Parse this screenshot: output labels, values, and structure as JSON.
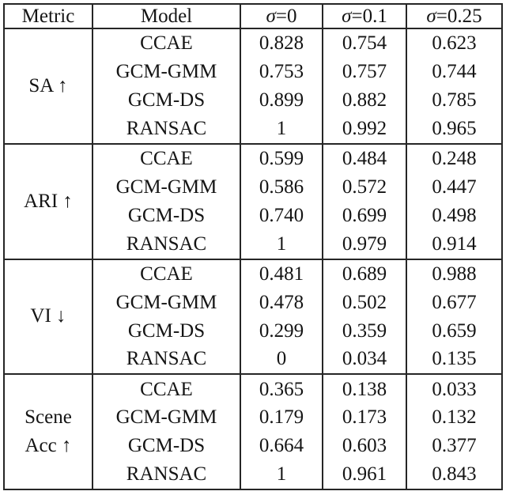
{
  "table": {
    "header": {
      "metric_label": "Metric",
      "model_label": "Model",
      "sigma_symbol": "σ",
      "noise_columns": [
        {
          "label": "σ=0",
          "suffix": "=0"
        },
        {
          "label": "σ=0.1",
          "suffix": "=0.1"
        },
        {
          "label": "σ=0.25",
          "suffix": "=0.25"
        }
      ]
    },
    "sections": [
      {
        "metric": "SA ↑",
        "metric_lines": [
          "SA ↑"
        ],
        "rows": [
          {
            "model": "CCAE",
            "values": [
              "0.828",
              "0.754",
              "0.623"
            ]
          },
          {
            "model": "GCM-GMM",
            "values": [
              "0.753",
              "0.757",
              "0.744"
            ]
          },
          {
            "model": "GCM-DS",
            "values": [
              "0.899",
              "0.882",
              "0.785"
            ]
          },
          {
            "model": "RANSAC",
            "values": [
              "1",
              "0.992",
              "0.965"
            ]
          }
        ]
      },
      {
        "metric": "ARI ↑",
        "metric_lines": [
          "ARI ↑"
        ],
        "rows": [
          {
            "model": "CCAE",
            "values": [
              "0.599",
              "0.484",
              "0.248"
            ]
          },
          {
            "model": "GCM-GMM",
            "values": [
              "0.586",
              "0.572",
              "0.447"
            ]
          },
          {
            "model": "GCM-DS",
            "values": [
              "0.740",
              "0.699",
              "0.498"
            ]
          },
          {
            "model": "RANSAC",
            "values": [
              "1",
              "0.979",
              "0.914"
            ]
          }
        ]
      },
      {
        "metric": "VI ↓",
        "metric_lines": [
          "VI ↓"
        ],
        "rows": [
          {
            "model": "CCAE",
            "values": [
              "0.481",
              "0.689",
              "0.988"
            ]
          },
          {
            "model": "GCM-GMM",
            "values": [
              "0.478",
              "0.502",
              "0.677"
            ]
          },
          {
            "model": "GCM-DS",
            "values": [
              "0.299",
              "0.359",
              "0.659"
            ]
          },
          {
            "model": "RANSAC",
            "values": [
              "0",
              "0.034",
              "0.135"
            ]
          }
        ]
      },
      {
        "metric": "Scene Acc ↑",
        "metric_lines": [
          "Scene",
          "Acc ↑"
        ],
        "rows": [
          {
            "model": "CCAE",
            "values": [
              "0.365",
              "0.138",
              "0.033"
            ]
          },
          {
            "model": "GCM-GMM",
            "values": [
              "0.179",
              "0.173",
              "0.132"
            ]
          },
          {
            "model": "GCM-DS",
            "values": [
              "0.664",
              "0.603",
              "0.377"
            ]
          },
          {
            "model": "RANSAC",
            "values": [
              "1",
              "0.961",
              "0.843"
            ]
          }
        ]
      }
    ]
  },
  "chart_data": {
    "type": "table",
    "columns": [
      "Metric",
      "Model",
      "σ=0",
      "σ=0.1",
      "σ=0.25"
    ],
    "rows": [
      [
        "SA ↑",
        "CCAE",
        0.828,
        0.754,
        0.623
      ],
      [
        "SA ↑",
        "GCM-GMM",
        0.753,
        0.757,
        0.744
      ],
      [
        "SA ↑",
        "GCM-DS",
        0.899,
        0.882,
        0.785
      ],
      [
        "SA ↑",
        "RANSAC",
        1,
        0.992,
        0.965
      ],
      [
        "ARI ↑",
        "CCAE",
        0.599,
        0.484,
        0.248
      ],
      [
        "ARI ↑",
        "GCM-GMM",
        0.586,
        0.572,
        0.447
      ],
      [
        "ARI ↑",
        "GCM-DS",
        0.74,
        0.699,
        0.498
      ],
      [
        "ARI ↑",
        "RANSAC",
        1,
        0.979,
        0.914
      ],
      [
        "VI ↓",
        "CCAE",
        0.481,
        0.689,
        0.988
      ],
      [
        "VI ↓",
        "GCM-GMM",
        0.478,
        0.502,
        0.677
      ],
      [
        "VI ↓",
        "GCM-DS",
        0.299,
        0.359,
        0.659
      ],
      [
        "VI ↓",
        "RANSAC",
        0,
        0.034,
        0.135
      ],
      [
        "Scene Acc ↑",
        "CCAE",
        0.365,
        0.138,
        0.033
      ],
      [
        "Scene Acc ↑",
        "GCM-GMM",
        0.179,
        0.173,
        0.132
      ],
      [
        "Scene Acc ↑",
        "GCM-DS",
        0.664,
        0.603,
        0.377
      ],
      [
        "Scene Acc ↑",
        "RANSAC",
        1,
        0.961,
        0.843
      ]
    ],
    "text_color": "#151515",
    "border_color": "#262626",
    "background_color": "#ffffff"
  }
}
